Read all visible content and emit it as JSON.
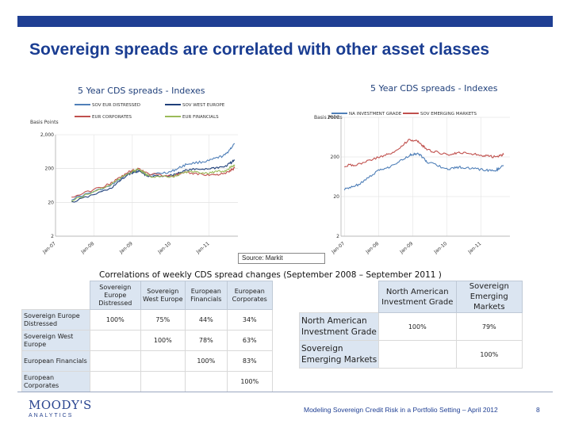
{
  "slide": {
    "title": "Sovereign spreads are correlated with other asset classes",
    "source": "Source: Markit",
    "footer": "Modeling Sovereign Credit Risk in a Portfolio Setting – April 2012",
    "page_number": "8",
    "logo_line1": "MOODY'S",
    "logo_line2": "ANALYTICS",
    "colors": {
      "brand": "#1f3f93",
      "header_fill": "#dbe5f1"
    }
  },
  "chart_data": [
    {
      "type": "line",
      "title": "5 Year CDS spreads - Indexes",
      "ylabel": "Basis Points",
      "yscale": "log",
      "ylim": [
        2,
        2000
      ],
      "y_ticks": [
        "2,000",
        "200",
        "20",
        "2"
      ],
      "x_ticks": [
        "Jan-07",
        "Jan-08",
        "Jan-09",
        "Jan-10",
        "Jan-11"
      ],
      "grid": true,
      "legend_position": "top",
      "series": [
        {
          "name": "SOV EUR DISTRESSED",
          "color": "#4f7fb8",
          "x": [
            "2007-06",
            "2008-06",
            "2008-12",
            "2009-03",
            "2009-06",
            "2010-01",
            "2010-06",
            "2011-01",
            "2011-06",
            "2011-09"
          ],
          "y": [
            25,
            60,
            150,
            180,
            130,
            160,
            270,
            340,
            500,
            1100
          ]
        },
        {
          "name": "SOV WEST EUROPE",
          "color": "#1f3f7a",
          "x": [
            "2007-06",
            "2008-06",
            "2008-12",
            "2009-03",
            "2009-06",
            "2010-01",
            "2010-06",
            "2011-01",
            "2011-06",
            "2011-09"
          ],
          "y": [
            20,
            50,
            140,
            170,
            115,
            125,
            180,
            200,
            230,
            350
          ]
        },
        {
          "name": "EUR CORPORATES",
          "color": "#c0504d",
          "x": [
            "2007-06",
            "2008-06",
            "2008-12",
            "2009-03",
            "2009-06",
            "2010-01",
            "2010-06",
            "2011-01",
            "2011-06",
            "2011-09"
          ],
          "y": [
            28,
            70,
            160,
            200,
            140,
            120,
            150,
            130,
            140,
            210
          ]
        },
        {
          "name": "EUR FINANCIALS",
          "color": "#9bbb59",
          "x": [
            "2007-06",
            "2008-06",
            "2008-12",
            "2009-03",
            "2009-06",
            "2010-01",
            "2010-06",
            "2011-01",
            "2011-06",
            "2011-09"
          ],
          "y": [
            22,
            65,
            150,
            190,
            120,
            110,
            160,
            150,
            170,
            260
          ]
        }
      ]
    },
    {
      "type": "line",
      "title": "5 Year CDS spreads - Indexes",
      "ylabel": "Basis Points",
      "yscale": "log",
      "ylim": [
        2,
        2000
      ],
      "y_ticks": [
        "2000",
        "200",
        "20",
        "2"
      ],
      "x_ticks": [
        "Jan-07",
        "Jan-08",
        "Jan-09",
        "Jan-10",
        "Jan-11"
      ],
      "grid": true,
      "legend_position": "top",
      "series": [
        {
          "name": "NA INVESTMENT GRADE",
          "color": "#4f7fb8",
          "x": [
            "2007-01",
            "2007-06",
            "2008-01",
            "2008-06",
            "2008-12",
            "2009-03",
            "2009-06",
            "2010-01",
            "2010-06",
            "2011-01",
            "2011-06",
            "2011-09"
          ],
          "y": [
            30,
            40,
            90,
            120,
            220,
            250,
            150,
            100,
            110,
            95,
            90,
            120
          ]
        },
        {
          "name": "SOV EMERGING MARKETS",
          "color": "#c0504d",
          "x": [
            "2007-01",
            "2007-06",
            "2008-01",
            "2008-06",
            "2008-12",
            "2009-03",
            "2009-06",
            "2010-01",
            "2010-06",
            "2011-01",
            "2011-06",
            "2011-09"
          ],
          "y": [
            120,
            130,
            200,
            250,
            550,
            500,
            300,
            230,
            260,
            220,
            200,
            230
          ]
        }
      ]
    }
  ],
  "correlations": {
    "title": "Correlations of weekly CDS spread changes (September 2008 – September 2011 )",
    "table1": {
      "columns": [
        "Sovereign Europe Distressed",
        "Sovereign West Europe",
        "European Financials",
        "European Corporates"
      ],
      "rows": [
        {
          "label": "Sovereign Europe Distressed",
          "cells": [
            "100%",
            "75%",
            "44%",
            "34%"
          ]
        },
        {
          "label": "Sovereign West Europe",
          "cells": [
            "",
            "100%",
            "78%",
            "63%"
          ]
        },
        {
          "label": "European Financials",
          "cells": [
            "",
            "",
            "100%",
            "83%"
          ]
        },
        {
          "label": "European Corporates",
          "cells": [
            "",
            "",
            "",
            "100%"
          ]
        }
      ]
    },
    "table2": {
      "columns": [
        "North American Investment Grade",
        "Sovereign Emerging Markets"
      ],
      "rows": [
        {
          "label": "North American Investment Grade",
          "cells": [
            "100%",
            "79%"
          ]
        },
        {
          "label": "Sovereign Emerging Markets",
          "cells": [
            "",
            "100%"
          ]
        }
      ]
    }
  }
}
